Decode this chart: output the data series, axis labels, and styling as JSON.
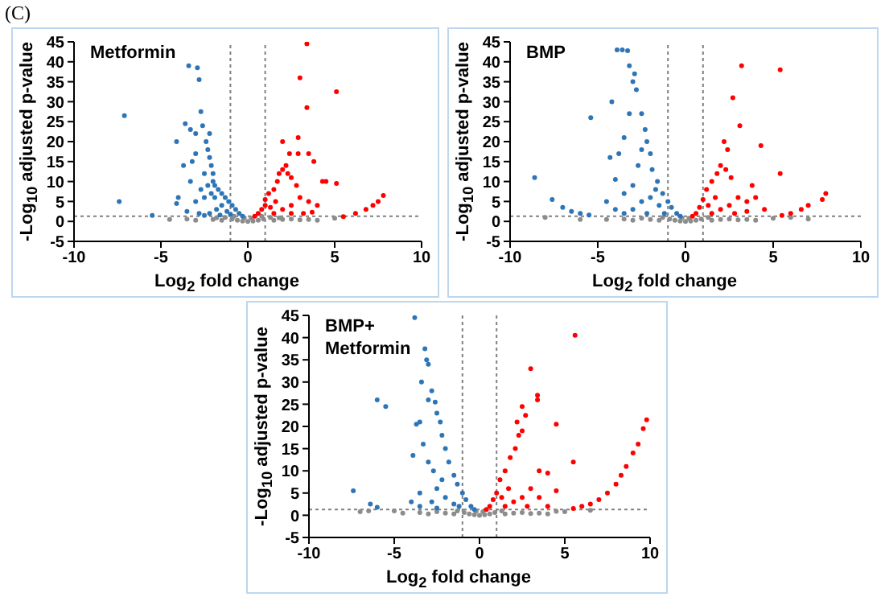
{
  "chart_data": [
    {
      "type": "scatter",
      "title": "Metformin",
      "xlabel": "Log$_{2}$ fold change",
      "ylabel": "-Log$_{10}$ adjusted p-value",
      "annotations": [
        "(C)"
      ],
      "xlim": [
        -10,
        10
      ],
      "xticks": [
        -10,
        -5,
        0,
        5,
        10
      ],
      "ylim": [
        -5,
        45
      ],
      "yticks": [
        -5,
        0,
        5,
        10,
        15,
        20,
        25,
        30,
        35,
        40,
        45
      ],
      "marker": "circle",
      "ref_lines": [
        {
          "axis": "x",
          "value": -1,
          "color": "#808080",
          "line_style": "dotted"
        },
        {
          "axis": "x",
          "value": 1,
          "color": "#808080",
          "line_style": "dotted"
        },
        {
          "axis": "y",
          "value": 1.3,
          "color": "#808080",
          "line_style": "dotted"
        }
      ],
      "series": [
        {
          "color": "#8c8c8c",
          "x": [
            0,
            -0.3,
            0.3,
            -0.6,
            0.6,
            -0.9,
            0.9,
            -1.5,
            1.5,
            -2,
            2,
            2.5,
            -3,
            3,
            -3.5,
            3.5,
            4,
            -4.5,
            5,
            0.2,
            -0.2,
            1.3,
            -1.3,
            -0.8,
            0.8,
            -1.8,
            1.8
          ],
          "values": [
            0,
            0.1,
            0.1,
            0.3,
            0.3,
            0.6,
            0.6,
            0.3,
            0.3,
            0.5,
            0.5,
            0.6,
            0.3,
            0.4,
            0.6,
            0.5,
            0.3,
            0.5,
            0.8,
            0.8,
            0.9,
            1,
            1,
            1.3,
            1.3,
            0.9,
            0.9
          ]
        },
        {
          "color": "#2e75b6",
          "x": [
            -0.3,
            -0.5,
            -0.7,
            -0.9,
            -1.1,
            -1.3,
            -1.5,
            -1.7,
            -1.9,
            -2,
            -2,
            -2.1,
            -2.2,
            -2.3,
            -2.4,
            -2.2,
            -2.6,
            -2.7,
            -2.8,
            -2.9,
            -3.4,
            -3.6,
            -3.3,
            -3,
            -3,
            -3.2,
            -3.7,
            -4.1,
            -3.3,
            -4,
            -4.1,
            -7.1,
            -7.4,
            -5.5,
            -3,
            -2.5,
            -2.7,
            -2.3,
            -1.5,
            -1.2,
            -1.8,
            -2.2,
            -2.8,
            -3.5,
            -1,
            -1.6,
            -2.5,
            -1.9,
            -2.5,
            -2.1
          ],
          "values": [
            1.3,
            2,
            3,
            4,
            5,
            6,
            7,
            8,
            9,
            10,
            12,
            14,
            16,
            18,
            20,
            22,
            24,
            27.5,
            35.5,
            38.5,
            39,
            24.5,
            23,
            22,
            17,
            15,
            14,
            20,
            10,
            6,
            4.5,
            26.5,
            5,
            1.5,
            5,
            6,
            8,
            9,
            4,
            2.5,
            3,
            2,
            2,
            2.5,
            1.8,
            1.6,
            1.5,
            6,
            12,
            7
          ]
        },
        {
          "color": "#ff0000",
          "x": [
            0.4,
            0.6,
            0.8,
            1,
            1,
            1.2,
            1.5,
            1.7,
            1.8,
            2,
            2.2,
            2.3,
            2.5,
            2.8,
            2,
            2.4,
            2.9,
            2.9,
            3,
            3.4,
            3.4,
            5.1,
            3.5,
            3.8,
            4.3,
            4.5,
            5.1,
            4,
            3.5,
            3,
            2.5,
            2,
            1.5,
            2.5,
            3.2,
            1.3,
            1.6,
            5.5,
            6.2,
            6.8,
            7.2,
            7.5,
            7.8,
            3.7
          ],
          "values": [
            1.3,
            2,
            3,
            4,
            5.5,
            7,
            8,
            10,
            12,
            13,
            14,
            12,
            11,
            9,
            20,
            17,
            17,
            21,
            36,
            44.5,
            28.5,
            32.5,
            17,
            15,
            10,
            10,
            9.5,
            4,
            5,
            6,
            4,
            3,
            2,
            2,
            2,
            3.5,
            5,
            1.2,
            2,
            3,
            4,
            5,
            6.5,
            2.3
          ]
        }
      ]
    },
    {
      "type": "scatter",
      "title": "BMP",
      "xlabel": "Log$_{2}$ fold change",
      "ylabel": "-Log$_{10}$ adjusted p-value",
      "xlim": [
        -10,
        10
      ],
      "xticks": [
        -10,
        -5,
        0,
        5,
        10
      ],
      "ylim": [
        -5,
        45
      ],
      "yticks": [
        -5,
        0,
        5,
        10,
        15,
        20,
        25,
        30,
        35,
        40,
        45
      ],
      "marker": "circle",
      "ref_lines": [
        {
          "axis": "x",
          "value": -1,
          "color": "#808080",
          "line_style": "dotted"
        },
        {
          "axis": "x",
          "value": 1,
          "color": "#808080",
          "line_style": "dotted"
        },
        {
          "axis": "y",
          "value": 1.3,
          "color": "#808080",
          "line_style": "dotted"
        }
      ],
      "series": [
        {
          "color": "#8c8c8c",
          "x": [
            0,
            -0.3,
            0.3,
            -0.6,
            0.6,
            -0.9,
            0.9,
            -1.5,
            1.5,
            -2,
            2,
            -2.5,
            2.5,
            -3,
            3,
            -3.5,
            3.5,
            4,
            -4.5,
            5,
            0.2,
            -0.2,
            1.3,
            -1.3,
            -8,
            -6,
            6,
            7
          ],
          "values": [
            0,
            0.1,
            0.1,
            0.3,
            0.3,
            0.6,
            0.6,
            0.3,
            0.3,
            0.5,
            0.5,
            0.8,
            0.6,
            0.3,
            0.4,
            0.6,
            0.5,
            0.3,
            0.5,
            0.8,
            0.8,
            0.9,
            1,
            1,
            1,
            0.5,
            1,
            0.6
          ]
        },
        {
          "color": "#2e75b6",
          "x": [
            -0.3,
            -0.5,
            -0.8,
            -1,
            -1.3,
            -1.6,
            -1.9,
            -2,
            -2.2,
            -2.3,
            -2.5,
            -2.8,
            -2.9,
            -3,
            -3.2,
            -3.6,
            -3.9,
            -3.3,
            -4.2,
            -5.4,
            -3.2,
            -3.5,
            -3.8,
            -4.3,
            -4,
            -4.5,
            -3.5,
            -3,
            -2.7,
            -2.5,
            -8.6,
            -7.6,
            -7,
            -6.5,
            -6,
            -5.5,
            -3,
            -2.5,
            -2,
            -1.5,
            -1.2,
            -2.2,
            -3.5,
            -4,
            -1.7
          ],
          "values": [
            1.3,
            2,
            3.5,
            5,
            7,
            10,
            13,
            17,
            20,
            23,
            27,
            33,
            37,
            35,
            39,
            43,
            43,
            42.8,
            30,
            26,
            27,
            21,
            17,
            16,
            10.5,
            5,
            7,
            9,
            14,
            18,
            11,
            5.5,
            3.5,
            2.5,
            2,
            1.6,
            3,
            5,
            6,
            4,
            2,
            2,
            2,
            3,
            8
          ]
        },
        {
          "color": "#ff0000",
          "x": [
            0.4,
            0.6,
            0.8,
            1,
            1.2,
            1.5,
            1.8,
            2,
            2.3,
            2.6,
            2.2,
            2.4,
            2.7,
            3.2,
            3.1,
            4.3,
            5.4,
            5.4,
            3.8,
            4,
            3.5,
            3,
            2.5,
            2,
            1.5,
            2.8,
            3.5,
            1.3,
            1.7,
            5.5,
            6,
            6.6,
            7,
            7.8,
            8,
            4.5
          ],
          "values": [
            1.3,
            2,
            3.5,
            5.5,
            8,
            10,
            12,
            14,
            13,
            11,
            20,
            18,
            31,
            39,
            24,
            19,
            38,
            12,
            9,
            6,
            5,
            6,
            4,
            3,
            2,
            2,
            2.5,
            4,
            6,
            1.5,
            2,
            3,
            4,
            5.5,
            7,
            3
          ]
        }
      ]
    },
    {
      "type": "scatter",
      "title": "BMP+\nMetformin",
      "xlabel": "Log$_{2}$ fold change",
      "ylabel": "-Log$_{10}$ adjusted p-value",
      "xlim": [
        -10,
        10
      ],
      "xticks": [
        -10,
        -5,
        0,
        5,
        10
      ],
      "ylim": [
        -5,
        45
      ],
      "yticks": [
        -5,
        0,
        5,
        10,
        15,
        20,
        25,
        30,
        35,
        40,
        45
      ],
      "marker": "circle",
      "ref_lines": [
        {
          "axis": "x",
          "value": -1,
          "color": "#808080",
          "line_style": "dotted"
        },
        {
          "axis": "x",
          "value": 1,
          "color": "#808080",
          "line_style": "dotted"
        },
        {
          "axis": "y",
          "value": 1.3,
          "color": "#808080",
          "line_style": "dotted"
        }
      ],
      "series": [
        {
          "color": "#8c8c8c",
          "x": [
            0,
            -0.3,
            0.3,
            -0.6,
            0.6,
            -0.9,
            0.9,
            -1.5,
            1.5,
            -2,
            2,
            -2.5,
            2.5,
            -3,
            3,
            -3.5,
            3.5,
            4,
            -4.5,
            5,
            -5,
            0.2,
            -0.2,
            1.3,
            -1.3,
            -6.5,
            6.5,
            -7,
            4.5
          ],
          "values": [
            0,
            0.1,
            0.1,
            0.3,
            0.3,
            0.6,
            0.6,
            0.3,
            0.3,
            0.5,
            0.5,
            0.8,
            0.6,
            0.3,
            0.4,
            0.6,
            0.5,
            0.3,
            0.5,
            0.8,
            1,
            0.8,
            0.9,
            1,
            1,
            1,
            1.1,
            0.8,
            0.9
          ]
        },
        {
          "color": "#2e75b6",
          "x": [
            -0.3,
            -0.5,
            -0.8,
            -1,
            -1.3,
            -1.5,
            -1.8,
            -2,
            -2.2,
            -2.3,
            -2.5,
            -2.6,
            -2.8,
            -3,
            -3.1,
            -3.2,
            -3.8,
            -3.4,
            -3,
            -3.5,
            -3.7,
            -3.9,
            -3.3,
            -3,
            -2.7,
            -3.5,
            -4,
            -6,
            -5.5,
            -7.4,
            -6.4,
            -6,
            -2.5,
            -2,
            -1.5,
            -2.2,
            -2.8,
            -1.2,
            -3.5,
            -2.5
          ],
          "values": [
            1.3,
            2,
            3.5,
            5,
            7,
            9,
            12,
            15,
            18,
            21,
            23,
            25.5,
            28,
            34,
            35,
            37.5,
            44.5,
            30,
            26,
            21,
            20.5,
            13.5,
            16,
            12,
            10,
            5,
            3,
            26,
            24.5,
            5.5,
            2.5,
            1.8,
            6,
            4,
            2.5,
            8,
            3,
            2,
            2,
            1.6
          ]
        },
        {
          "color": "#ff0000",
          "x": [
            0.4,
            0.6,
            0.8,
            1,
            1.2,
            1.5,
            1.8,
            2.1,
            2.3,
            2.5,
            2.2,
            2.7,
            2.5,
            3,
            3.4,
            3.4,
            4.5,
            5.6,
            5.5,
            3.5,
            4,
            4.5,
            3.5,
            3,
            2.5,
            2,
            1.5,
            2.8,
            4,
            1.3,
            1.7,
            5.5,
            6,
            6.5,
            7,
            7.5,
            8,
            8.3,
            8.6,
            9,
            9.3,
            9.6,
            9.8
          ],
          "values": [
            1.3,
            2,
            3.5,
            5,
            8,
            10,
            13,
            15,
            18,
            19,
            21,
            22.5,
            24.5,
            33,
            27,
            26,
            20.5,
            40.5,
            12,
            10,
            9.5,
            5.5,
            4,
            6,
            4,
            3,
            2,
            2,
            2,
            4,
            6,
            1.5,
            2,
            2.5,
            3.5,
            5,
            7,
            9,
            11,
            14,
            16,
            19.5,
            21.5
          ]
        }
      ]
    }
  ]
}
